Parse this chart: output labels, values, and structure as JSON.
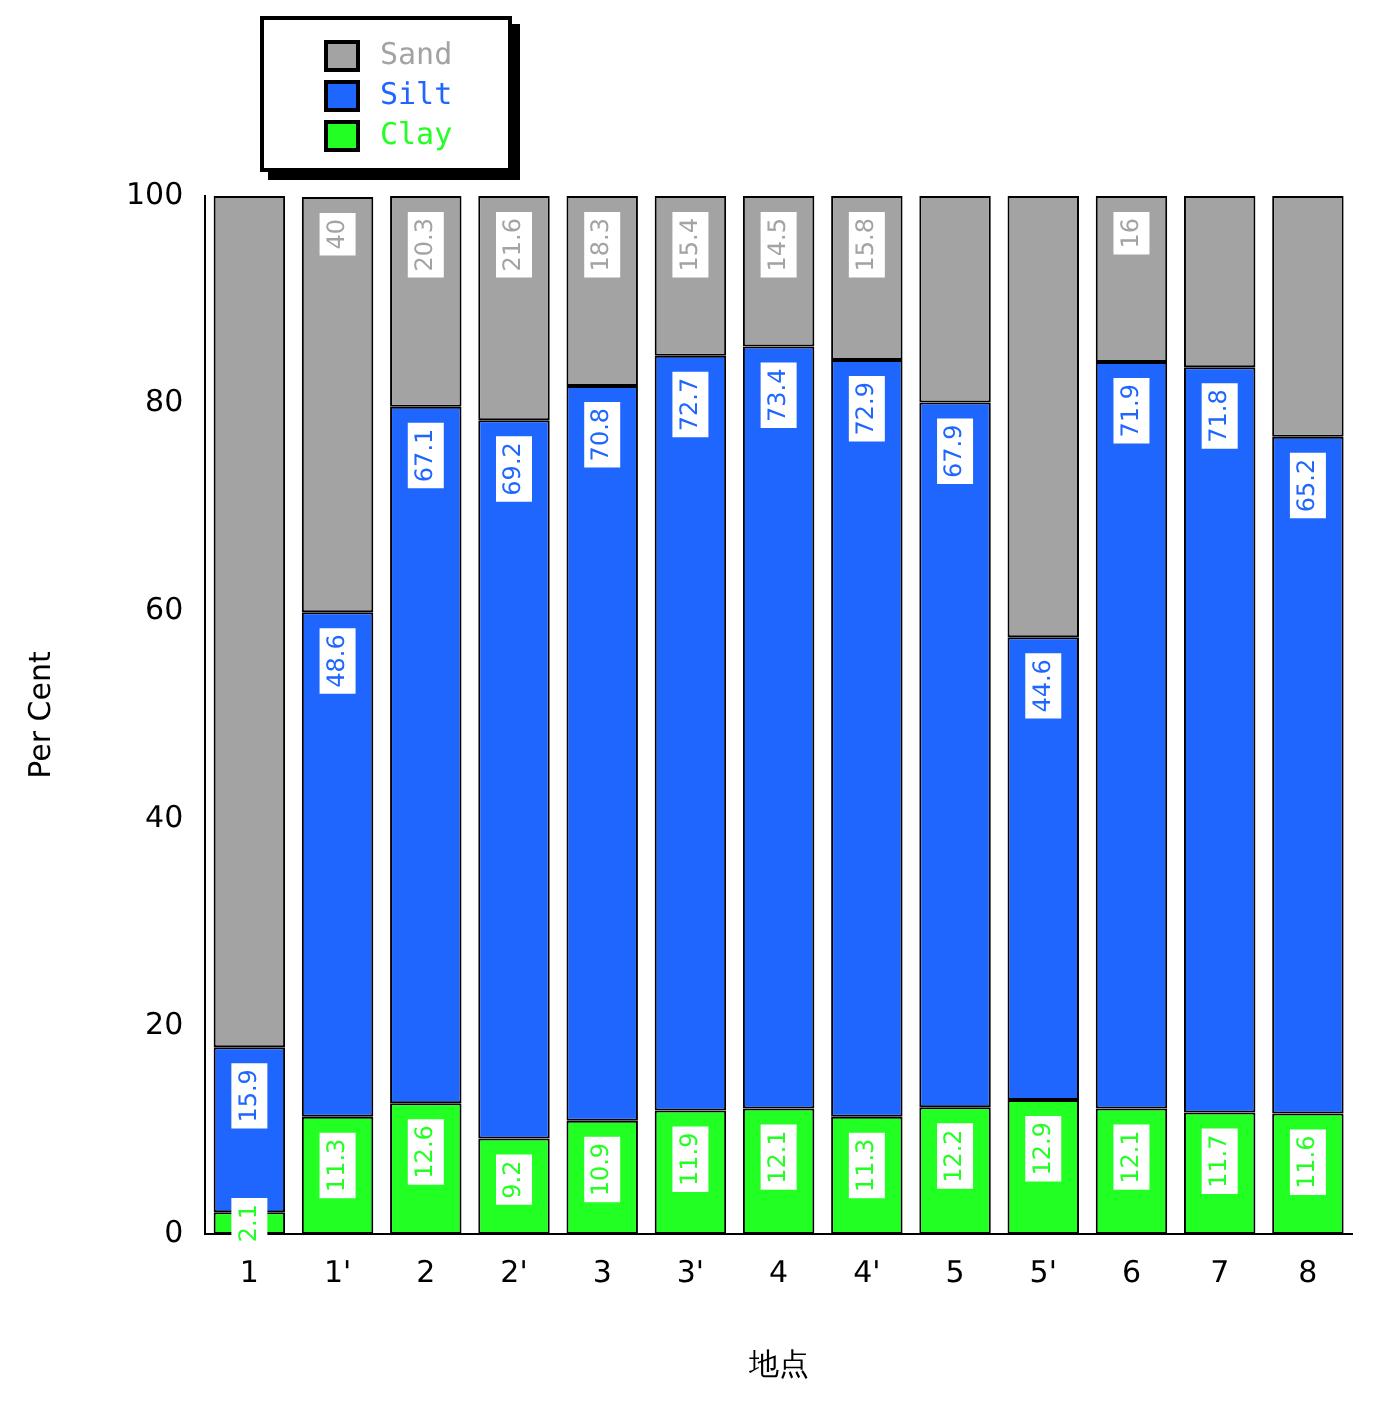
{
  "chart_data": {
    "type": "bar",
    "stacked": true,
    "xlabel": "地点",
    "ylabel": "Per Cent",
    "categories": [
      "1",
      "1'",
      "2",
      "2'",
      "3",
      "3'",
      "4",
      "4'",
      "5",
      "5'",
      "6",
      "7",
      "8"
    ],
    "series": [
      {
        "name": "Clay",
        "color": "#22ff22",
        "values": [
          2.1,
          11.3,
          12.6,
          9.2,
          10.9,
          11.9,
          12.1,
          11.3,
          12.2,
          12.9,
          12.1,
          11.7,
          11.6
        ]
      },
      {
        "name": "Silt",
        "color": "#1f66ff",
        "values": [
          15.9,
          48.6,
          67.1,
          69.2,
          70.8,
          72.7,
          73.4,
          72.9,
          67.9,
          44.6,
          71.9,
          71.8,
          65.2
        ]
      },
      {
        "name": "Sand",
        "color": "#a3a3a3",
        "values": [
          82,
          40,
          20.3,
          21.6,
          18.3,
          15.4,
          14.5,
          15.8,
          19.9,
          42.5,
          16,
          16.5,
          23.2
        ],
        "value_labels": [
          null,
          "40",
          "20.3",
          "21.6",
          "18.3",
          "15.4",
          "14.5",
          "15.8",
          null,
          null,
          "16",
          null,
          null
        ]
      }
    ],
    "ylim": [
      0,
      100
    ],
    "yticks": [
      0,
      20,
      40,
      60,
      80,
      100
    ],
    "grid": false,
    "legend": "top left",
    "data_labels": true
  }
}
